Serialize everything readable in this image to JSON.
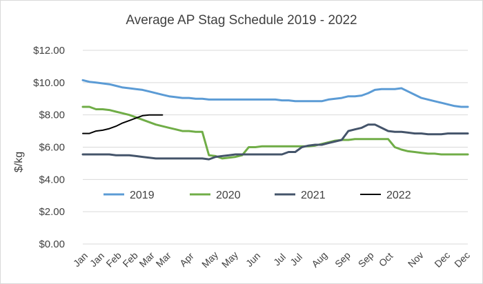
{
  "chart_data": {
    "type": "line",
    "title": "Average AP Stag Schedule 2019 - 2022",
    "xlabel": "",
    "ylabel": "$/kg",
    "ylim": [
      0,
      12
    ],
    "yticks": [
      "$0.00",
      "$2.00",
      "$4.00",
      "$6.00",
      "$8.00",
      "$10.00",
      "$12.00"
    ],
    "xticks": [
      "Jan",
      "Jan",
      "Feb",
      "Feb",
      "Mar",
      "Mar",
      "Apr",
      "May",
      "May",
      "Jun",
      "Jul",
      "Jul",
      "Aug",
      "Sep",
      "Sep",
      "Oct",
      "Nov",
      "Dec",
      "Dec"
    ],
    "x_tick_positions": [
      1,
      3.5,
      6,
      8.5,
      11,
      13.5,
      17,
      20.5,
      23.5,
      27,
      31,
      33.5,
      37,
      40.5,
      44,
      47,
      51.5,
      55.5,
      58.5
    ],
    "grid": true,
    "legend_position": "inside-middle",
    "x": [
      1,
      2,
      3,
      4,
      5,
      6,
      7,
      8,
      9,
      10,
      11,
      12,
      13,
      14,
      15,
      16,
      17,
      18,
      19,
      20,
      21,
      22,
      23,
      24,
      25,
      26,
      27,
      28,
      29,
      30,
      31,
      32,
      33,
      34,
      35,
      36,
      37,
      38,
      39,
      40,
      41,
      42,
      43,
      44,
      45,
      46,
      47,
      48,
      49,
      50,
      51,
      52,
      53,
      54,
      55,
      56,
      57,
      58,
      59
    ],
    "series": [
      {
        "name": "2019",
        "color": "#5b9bd5",
        "values": [
          10.15,
          10.05,
          10.0,
          9.95,
          9.9,
          9.8,
          9.7,
          9.65,
          9.6,
          9.55,
          9.45,
          9.35,
          9.25,
          9.15,
          9.1,
          9.05,
          9.05,
          9.0,
          9.0,
          8.95,
          8.95,
          8.95,
          8.95,
          8.95,
          8.95,
          8.95,
          8.95,
          8.95,
          8.95,
          8.95,
          8.9,
          8.9,
          8.85,
          8.85,
          8.85,
          8.85,
          8.85,
          8.95,
          9.0,
          9.05,
          9.15,
          9.15,
          9.2,
          9.35,
          9.55,
          9.6,
          9.6,
          9.6,
          9.65,
          9.45,
          9.25,
          9.05,
          8.95,
          8.85,
          8.75,
          8.65,
          8.55,
          8.5,
          8.5
        ]
      },
      {
        "name": "2020",
        "color": "#70ad47",
        "values": [
          8.5,
          8.5,
          8.35,
          8.35,
          8.3,
          8.2,
          8.1,
          8.0,
          7.85,
          7.7,
          7.55,
          7.4,
          7.3,
          7.2,
          7.1,
          7.0,
          7.0,
          6.95,
          6.95,
          5.5,
          5.45,
          5.3,
          5.35,
          5.4,
          5.5,
          6.0,
          6.0,
          6.05,
          6.05,
          6.05,
          6.05,
          6.05,
          6.05,
          6.05,
          6.05,
          6.1,
          6.2,
          6.3,
          6.4,
          6.45,
          6.45,
          6.5,
          6.5,
          6.5,
          6.5,
          6.5,
          6.5,
          6.0,
          5.85,
          5.75,
          5.7,
          5.65,
          5.6,
          5.6,
          5.55,
          5.55,
          5.55,
          5.55,
          5.55
        ]
      },
      {
        "name": "2021",
        "color": "#44546a",
        "values": [
          5.55,
          5.55,
          5.55,
          5.55,
          5.55,
          5.5,
          5.5,
          5.5,
          5.45,
          5.4,
          5.35,
          5.3,
          5.3,
          5.3,
          5.3,
          5.3,
          5.3,
          5.3,
          5.3,
          5.25,
          5.4,
          5.45,
          5.5,
          5.55,
          5.55,
          5.55,
          5.55,
          5.55,
          5.55,
          5.55,
          5.55,
          5.7,
          5.7,
          6.0,
          6.1,
          6.15,
          6.15,
          6.25,
          6.35,
          6.45,
          7.0,
          7.1,
          7.2,
          7.4,
          7.4,
          7.2,
          7.0,
          6.95,
          6.95,
          6.9,
          6.85,
          6.85,
          6.8,
          6.8,
          6.8,
          6.85,
          6.85,
          6.85,
          6.85
        ]
      },
      {
        "name": "2022",
        "color": "#000000",
        "values": [
          6.85,
          6.85,
          7.0,
          7.05,
          7.15,
          7.3,
          7.5,
          7.65,
          7.8,
          7.95,
          8.0,
          8.0,
          8.0,
          null,
          null,
          null,
          null,
          null,
          null,
          null,
          null,
          null,
          null,
          null,
          null,
          null,
          null,
          null,
          null,
          null,
          null,
          null,
          null,
          null,
          null,
          null,
          null,
          null,
          null,
          null,
          null,
          null,
          null,
          null,
          null,
          null,
          null,
          null,
          null,
          null,
          null,
          null,
          null,
          null,
          null,
          null,
          null,
          null,
          null
        ]
      }
    ]
  }
}
